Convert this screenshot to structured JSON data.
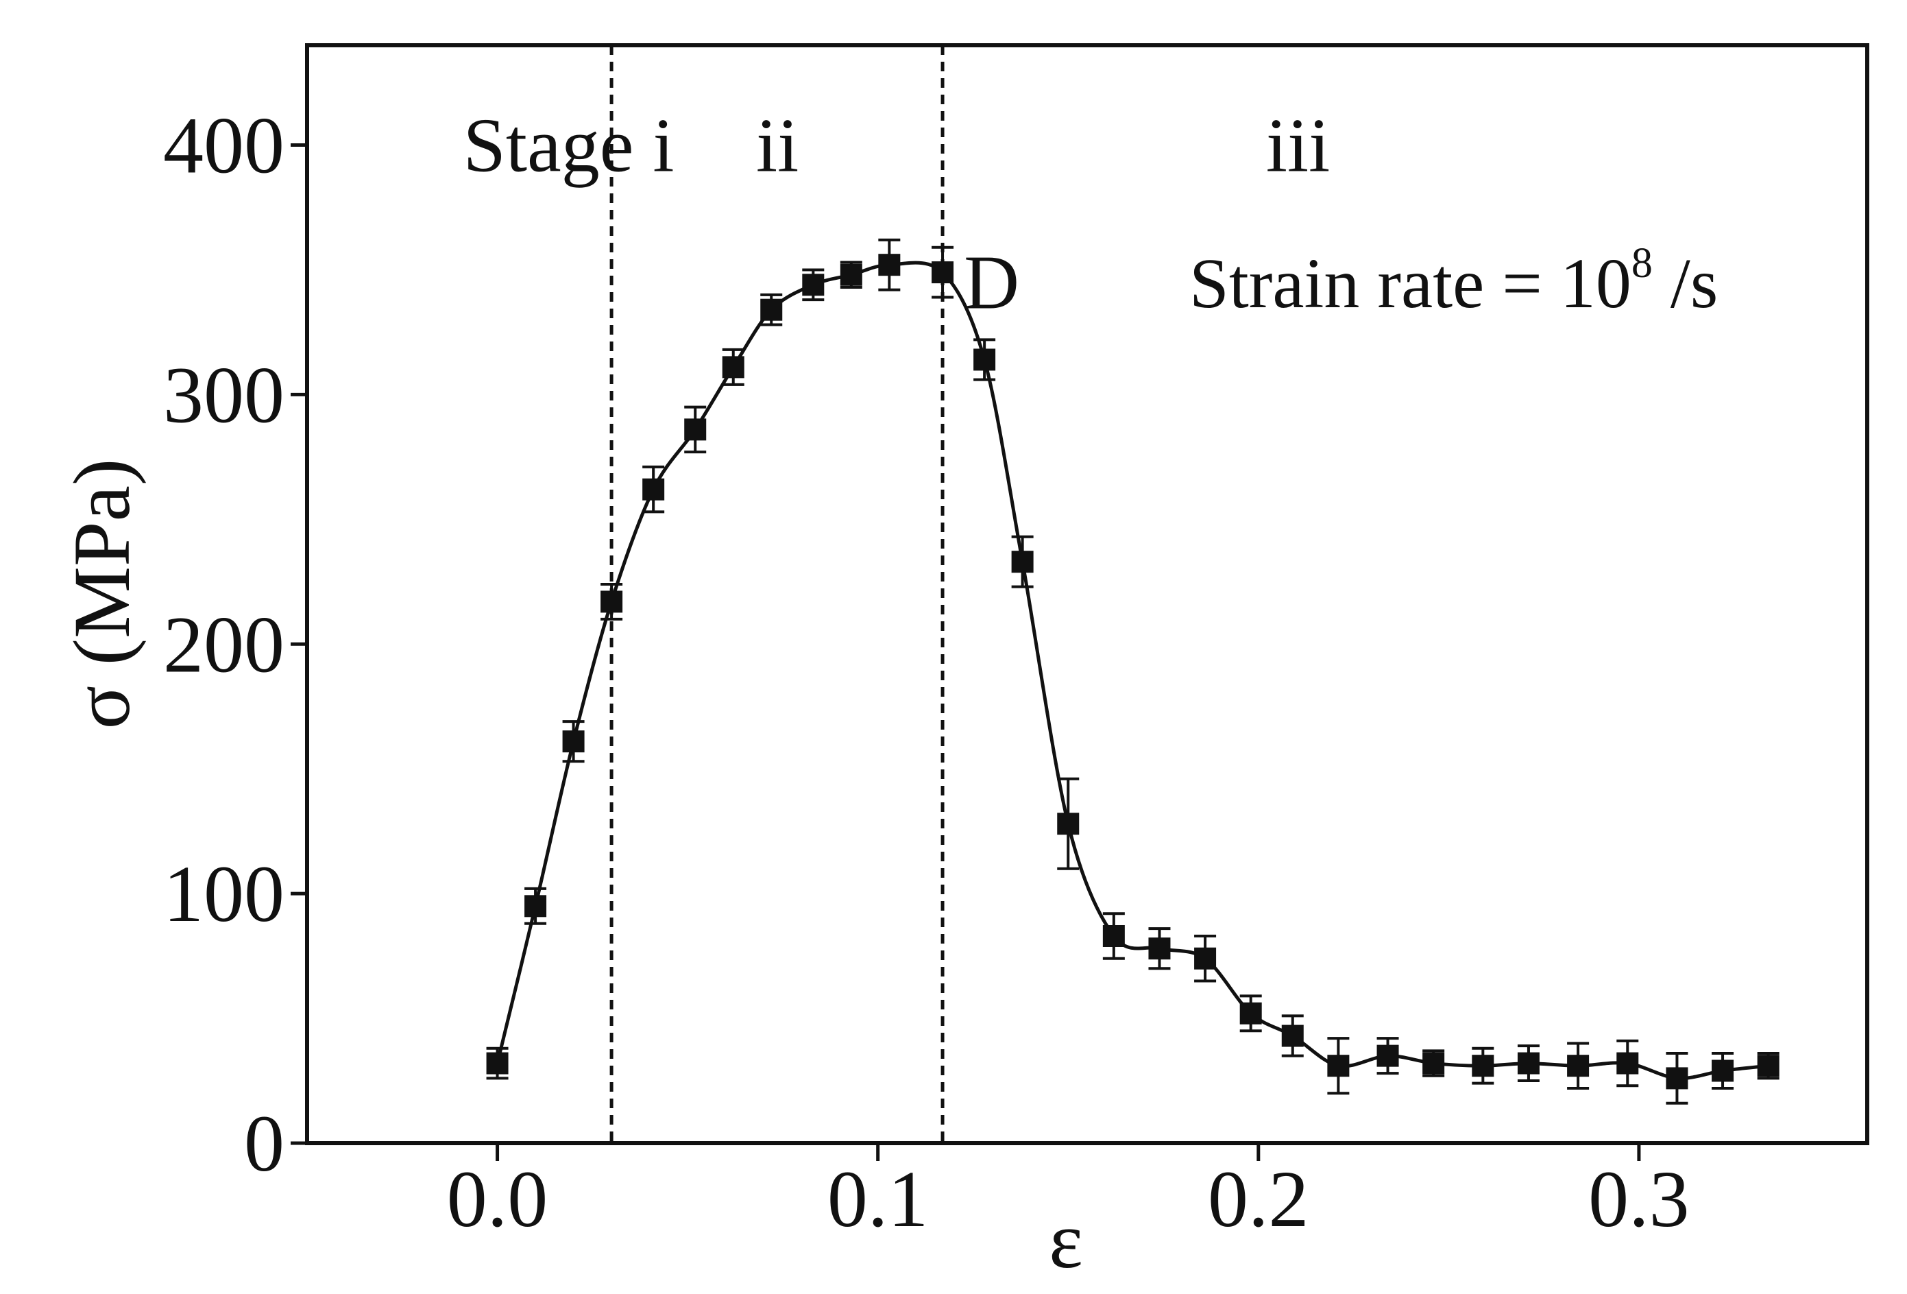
{
  "chart_data": {
    "type": "scatter",
    "xlabel": "ε",
    "ylabel": "σ (MPa)",
    "xlim": [
      -0.05,
      0.36
    ],
    "ylim": [
      0,
      440
    ],
    "x_ticks": [
      {
        "value": 0.0,
        "label": "0.0"
      },
      {
        "value": 0.1,
        "label": "0.1"
      },
      {
        "value": 0.2,
        "label": "0.2"
      },
      {
        "value": 0.3,
        "label": "0.3"
      }
    ],
    "y_ticks": [
      {
        "value": 0,
        "label": "0"
      },
      {
        "value": 100,
        "label": "100"
      },
      {
        "value": 200,
        "label": "200"
      },
      {
        "value": 300,
        "label": "300"
      },
      {
        "value": 400,
        "label": "400"
      }
    ],
    "stage_boundaries": [
      0.03,
      0.117
    ],
    "stage_labels": [
      {
        "text": "Stage i",
        "x": -0.009,
        "y": 400
      },
      {
        "text": "ii",
        "x": 0.068,
        "y": 400
      },
      {
        "text": "iii",
        "x": 0.202,
        "y": 400
      }
    ],
    "point_annotation": {
      "text": "D",
      "x": 0.128,
      "y": 345
    },
    "strain_rate_label": {
      "base": "Strain rate = 10",
      "exponent": "8",
      "unit": " /s"
    },
    "series": [
      {
        "marker": "square",
        "color": "#111111",
        "x": [
          0.0,
          0.01,
          0.02,
          0.03,
          0.041,
          0.052,
          0.062,
          0.072,
          0.083,
          0.093,
          0.103,
          0.117,
          0.128,
          0.138,
          0.15,
          0.162,
          0.174,
          0.186,
          0.198,
          0.209,
          0.221,
          0.234,
          0.246,
          0.259,
          0.271,
          0.284,
          0.297,
          0.31,
          0.322,
          0.334
        ],
        "y": [
          32,
          95,
          161,
          217,
          262,
          286,
          311,
          334,
          344,
          348,
          352,
          349,
          314,
          233,
          128,
          83,
          78,
          74,
          52,
          43,
          31,
          35,
          32,
          31,
          32,
          31,
          32,
          26,
          29,
          31
        ],
        "err": [
          6,
          7,
          8,
          7,
          9,
          9,
          7,
          6,
          6,
          5,
          10,
          10,
          8,
          10,
          18,
          9,
          8,
          9,
          7,
          8,
          11,
          7,
          5,
          7,
          7,
          9,
          9,
          10,
          7,
          5
        ]
      }
    ]
  }
}
